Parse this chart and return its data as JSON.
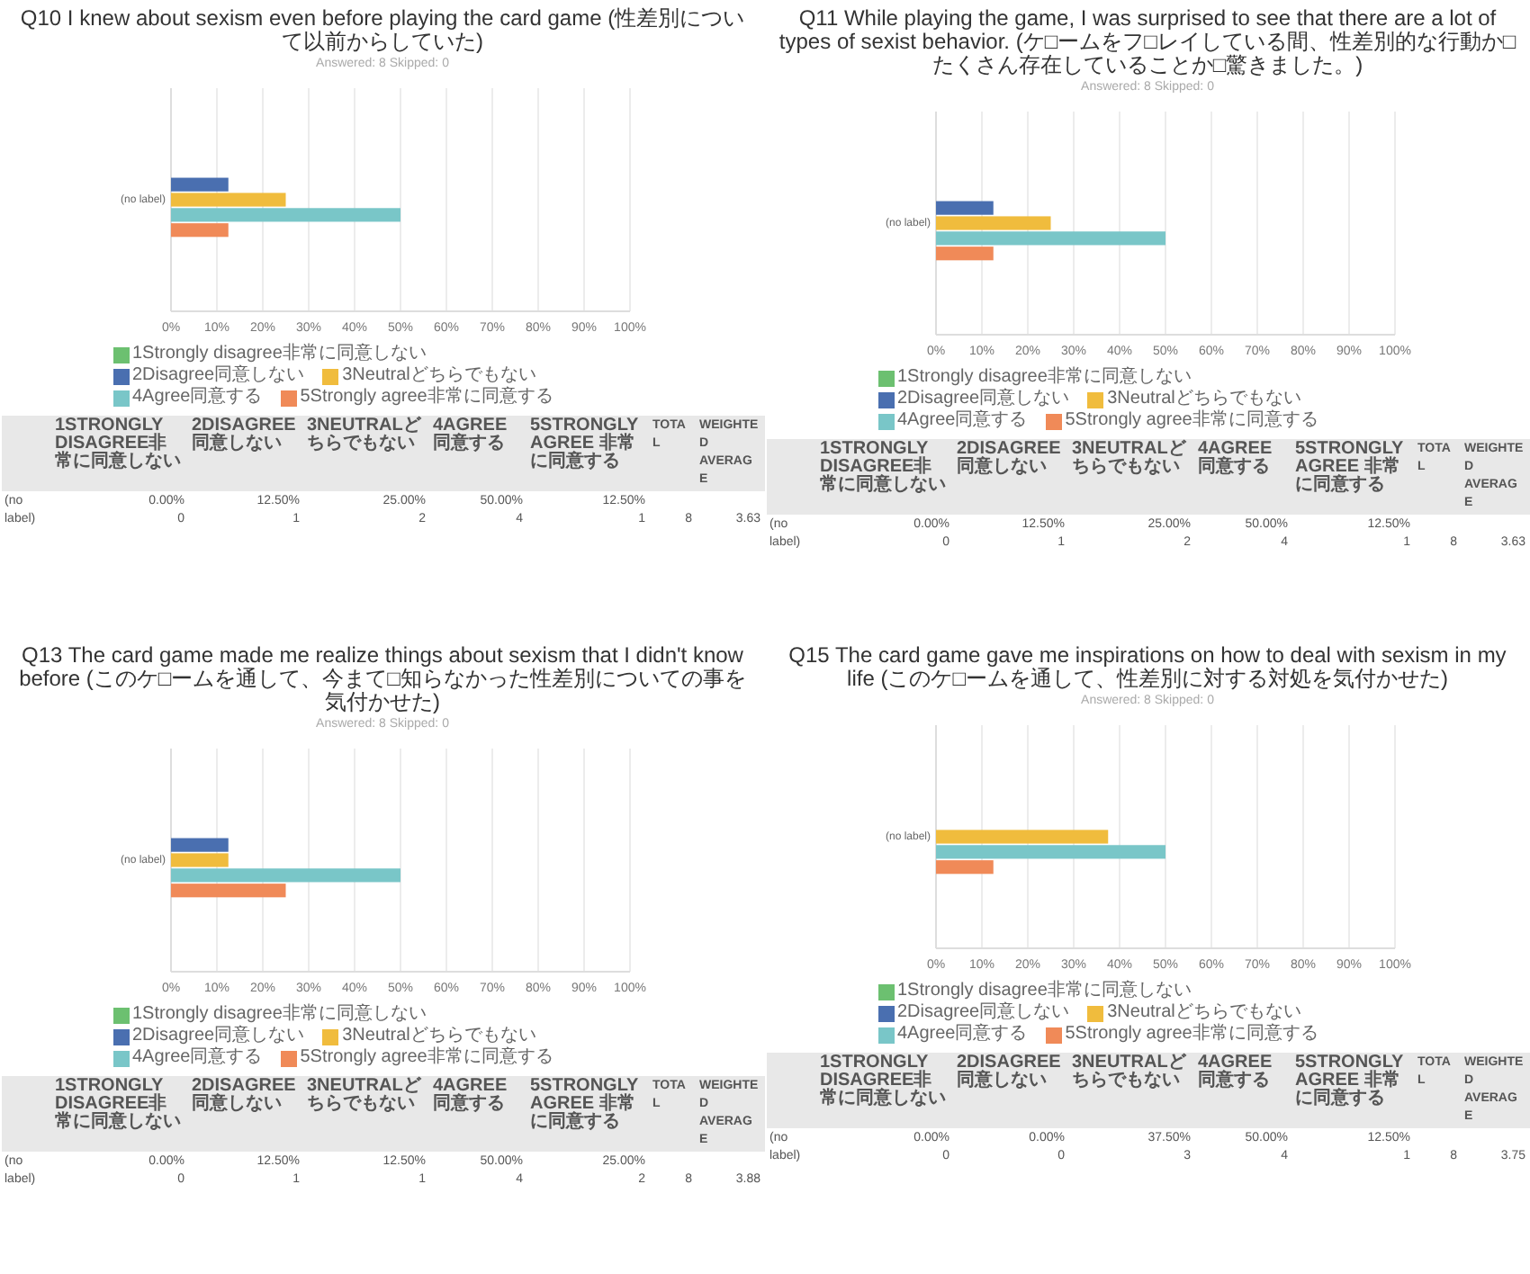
{
  "chart_data": [
    {
      "type": "bar",
      "orientation": "horizontal",
      "title": "Q10 I knew about sexism even before playing the card game (性差別について以前からしていた)",
      "subtitle": "Answered: 8    Skipped: 0",
      "categories": [
        "(no label)"
      ],
      "series": [
        {
          "name": "1Strongly disagree非常に同意しない",
          "color": "#6cc070",
          "values": [
            0
          ]
        },
        {
          "name": "2Disagree同意しない",
          "color": "#4a6fb0",
          "values": [
            12.5
          ]
        },
        {
          "name": "3Neutralどちらでもない",
          "color": "#f0bc3d",
          "values": [
            25
          ]
        },
        {
          "name": "4Agree同意する",
          "color": "#79c6c8",
          "values": [
            50
          ]
        },
        {
          "name": "5Strongly agree非常に同意する",
          "color": "#f08a58",
          "values": [
            12.5
          ]
        }
      ],
      "xlim": [
        0,
        100
      ],
      "xticks": [
        {
          "value": 0,
          "label": "0%"
        },
        {
          "value": 10,
          "label": "10%"
        },
        {
          "value": 20,
          "label": "20%"
        },
        {
          "value": 30,
          "label": "30%"
        },
        {
          "value": 40,
          "label": "40%"
        },
        {
          "value": 50,
          "label": "50%"
        },
        {
          "value": 60,
          "label": "60%"
        },
        {
          "value": 70,
          "label": "70%"
        },
        {
          "value": 80,
          "label": "80%"
        },
        {
          "value": 90,
          "label": "90%"
        },
        {
          "value": 100,
          "label": "100%"
        }
      ],
      "grid": "x",
      "legend": "bottom",
      "annotations": [
        "1STRONGLY DISAGREE非常に同意しない",
        "2DISAGREE 同意しない",
        "3NEUTRALどちらでもない",
        "4AGREE 同意する",
        "5STRONGLY AGREE 非常に同意する",
        "TOTAL",
        "WEIGHTED AVERAGE",
        "0.00%",
        "12.50%",
        "25.00%",
        "50.00%",
        "12.50%",
        "0",
        "1",
        "2",
        "4",
        "1",
        "8",
        "3.63"
      ]
    },
    {
      "type": "bar",
      "orientation": "horizontal",
      "title": "Q11 While playing the game, I was surprised to see that there are a lot of types of sexist behavior. (ケ□ームをフ□レイしている間、性差別的な行動か□たくさん存在していることか□驚きました。)",
      "subtitle": "Answered: 8    Skipped: 0",
      "categories": [
        "(no label)"
      ],
      "series": [
        {
          "name": "1Strongly disagree非常に同意しない",
          "color": "#6cc070",
          "values": [
            0
          ]
        },
        {
          "name": "2Disagree同意しない",
          "color": "#4a6fb0",
          "values": [
            12.5
          ]
        },
        {
          "name": "3Neutralどちらでもない",
          "color": "#f0bc3d",
          "values": [
            25
          ]
        },
        {
          "name": "4Agree同意する",
          "color": "#79c6c8",
          "values": [
            50
          ]
        },
        {
          "name": "5Strongly agree非常に同意する",
          "color": "#f08a58",
          "values": [
            12.5
          ]
        }
      ],
      "xlim": [
        0,
        100
      ],
      "xticks": [
        {
          "value": 0,
          "label": "0%"
        },
        {
          "value": 10,
          "label": "10%"
        },
        {
          "value": 20,
          "label": "20%"
        },
        {
          "value": 30,
          "label": "30%"
        },
        {
          "value": 40,
          "label": "40%"
        },
        {
          "value": 50,
          "label": "50%"
        },
        {
          "value": 60,
          "label": "60%"
        },
        {
          "value": 70,
          "label": "70%"
        },
        {
          "value": 80,
          "label": "80%"
        },
        {
          "value": 90,
          "label": "90%"
        },
        {
          "value": 100,
          "label": "100%"
        }
      ],
      "grid": "x",
      "legend": "bottom",
      "annotations": [
        "1STRONGLY DISAGREE非常に同意しない",
        "2DISAGREE 同意しない",
        "3NEUTRALどちらでもない",
        "4AGREE 同意する",
        "5STRONGLY AGREE 非常に同意する",
        "TOTAL",
        "WEIGHTED AVERAGE",
        "0.00%",
        "12.50%",
        "25.00%",
        "50.00%",
        "12.50%",
        "0",
        "1",
        "2",
        "4",
        "1",
        "8",
        "3.63"
      ]
    },
    {
      "type": "bar",
      "orientation": "horizontal",
      "title": "Q13 The card game made me realize things about sexism that I didn't know before (このケ□ームを通して、今まて□知らなかった性差別についての事を気付かせた)",
      "subtitle": "Answered: 8    Skipped: 0",
      "categories": [
        "(no label)"
      ],
      "series": [
        {
          "name": "1Strongly disagree非常に同意しない",
          "color": "#6cc070",
          "values": [
            0
          ]
        },
        {
          "name": "2Disagree同意しない",
          "color": "#4a6fb0",
          "values": [
            12.5
          ]
        },
        {
          "name": "3Neutralどちらでもない",
          "color": "#f0bc3d",
          "values": [
            12.5
          ]
        },
        {
          "name": "4Agree同意する",
          "color": "#79c6c8",
          "values": [
            50
          ]
        },
        {
          "name": "5Strongly agree非常に同意する",
          "color": "#f08a58",
          "values": [
            25
          ]
        }
      ],
      "xlim": [
        0,
        100
      ],
      "xticks": [
        {
          "value": 0,
          "label": "0%"
        },
        {
          "value": 10,
          "label": "10%"
        },
        {
          "value": 20,
          "label": "20%"
        },
        {
          "value": 30,
          "label": "30%"
        },
        {
          "value": 40,
          "label": "40%"
        },
        {
          "value": 50,
          "label": "50%"
        },
        {
          "value": 60,
          "label": "60%"
        },
        {
          "value": 70,
          "label": "70%"
        },
        {
          "value": 80,
          "label": "80%"
        },
        {
          "value": 90,
          "label": "90%"
        },
        {
          "value": 100,
          "label": "100%"
        }
      ],
      "grid": "x",
      "legend": "bottom",
      "annotations": [
        "1STRONGLY DISAGREE非常に同意しない",
        "2DISAGREE 同意しない",
        "3NEUTRALどちらでもない",
        "4AGREE 同意する",
        "5STRONGLY AGREE 非常に同意する",
        "TOTAL",
        "WEIGHTED AVERAGE",
        "0.00%",
        "12.50%",
        "12.50%",
        "50.00%",
        "25.00%",
        "0",
        "1",
        "1",
        "4",
        "2",
        "8",
        "3.88"
      ]
    },
    {
      "type": "bar",
      "orientation": "horizontal",
      "title": "Q15 The card game gave me inspirations on how to deal with sexism in my life (このケ□ームを通して、性差別に対する対処を気付かせた)",
      "subtitle": "Answered: 8    Skipped: 0",
      "categories": [
        "(no label)"
      ],
      "series": [
        {
          "name": "1Strongly disagree非常に同意しない",
          "color": "#6cc070",
          "values": [
            0
          ]
        },
        {
          "name": "2Disagree同意しない",
          "color": "#4a6fb0",
          "values": [
            0
          ]
        },
        {
          "name": "3Neutralどちらでもない",
          "color": "#f0bc3d",
          "values": [
            37.5
          ]
        },
        {
          "name": "4Agree同意する",
          "color": "#79c6c8",
          "values": [
            50
          ]
        },
        {
          "name": "5Strongly agree非常に同意する",
          "color": "#f08a58",
          "values": [
            12.5
          ]
        }
      ],
      "xlim": [
        0,
        100
      ],
      "xticks": [
        {
          "value": 0,
          "label": "0%"
        },
        {
          "value": 10,
          "label": "10%"
        },
        {
          "value": 20,
          "label": "20%"
        },
        {
          "value": 30,
          "label": "30%"
        },
        {
          "value": 40,
          "label": "40%"
        },
        {
          "value": 50,
          "label": "50%"
        },
        {
          "value": 60,
          "label": "60%"
        },
        {
          "value": 70,
          "label": "70%"
        },
        {
          "value": 80,
          "label": "80%"
        },
        {
          "value": 90,
          "label": "90%"
        },
        {
          "value": 100,
          "label": "100%"
        }
      ],
      "grid": "x",
      "legend": "bottom",
      "annotations": [
        "1STRONGLY DISAGREE非常に同意しない",
        "2DISAGREE 同意しない",
        "3NEUTRALどちらでもない",
        "4AGREE 同意する",
        "5STRONGLY AGREE 非常に同意する",
        "TOTAL",
        "WEIGHTED AVERAGE",
        "0.00%",
        "0.00%",
        "37.50%",
        "50.00%",
        "12.50%",
        "0",
        "0",
        "3",
        "4",
        "1",
        "8",
        "3.75"
      ]
    }
  ]
}
